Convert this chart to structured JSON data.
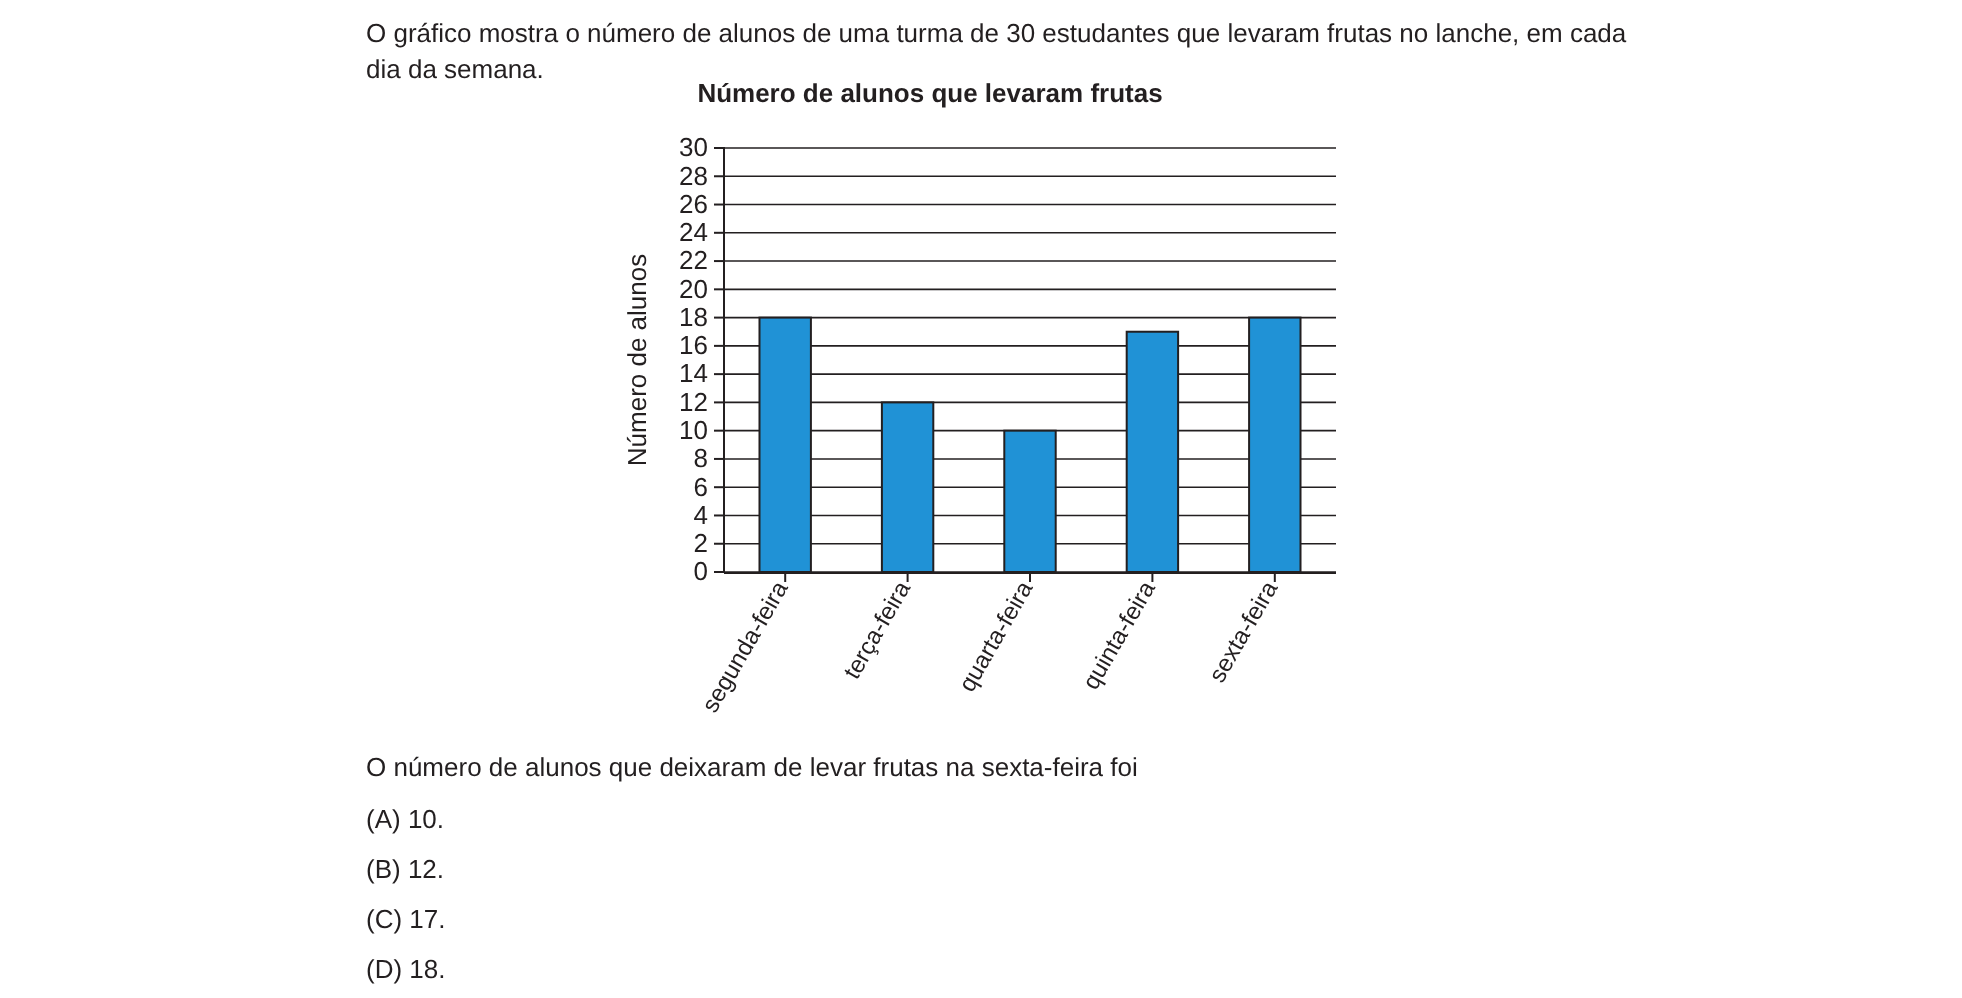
{
  "chart_data": {
    "type": "bar",
    "title": "Número de alunos que levaram frutas",
    "ylabel": "Número de alunos",
    "categories": [
      "segunda-feira",
      "terça-feira",
      "quarta-feira",
      "quinta-feira",
      "sexta-feira"
    ],
    "values": [
      18,
      12,
      10,
      17,
      18
    ],
    "color": "#2092d6",
    "ylim": [
      0,
      30
    ],
    "yticks": [
      0,
      2,
      4,
      6,
      8,
      10,
      12,
      14,
      16,
      18,
      20,
      22,
      24,
      26,
      28,
      30
    ],
    "grid": "y",
    "annotations": [
      "O gráfico mostra o número de alunos de uma turma de 30 estudantes que levaram frutas no lanche, em cada dia da semana.",
      "O número de alunos que deixaram de levar frutas na sexta-feira foi",
      "(A)  10.",
      "(B)  12.",
      "(C)  17.",
      "(D)  18."
    ]
  }
}
